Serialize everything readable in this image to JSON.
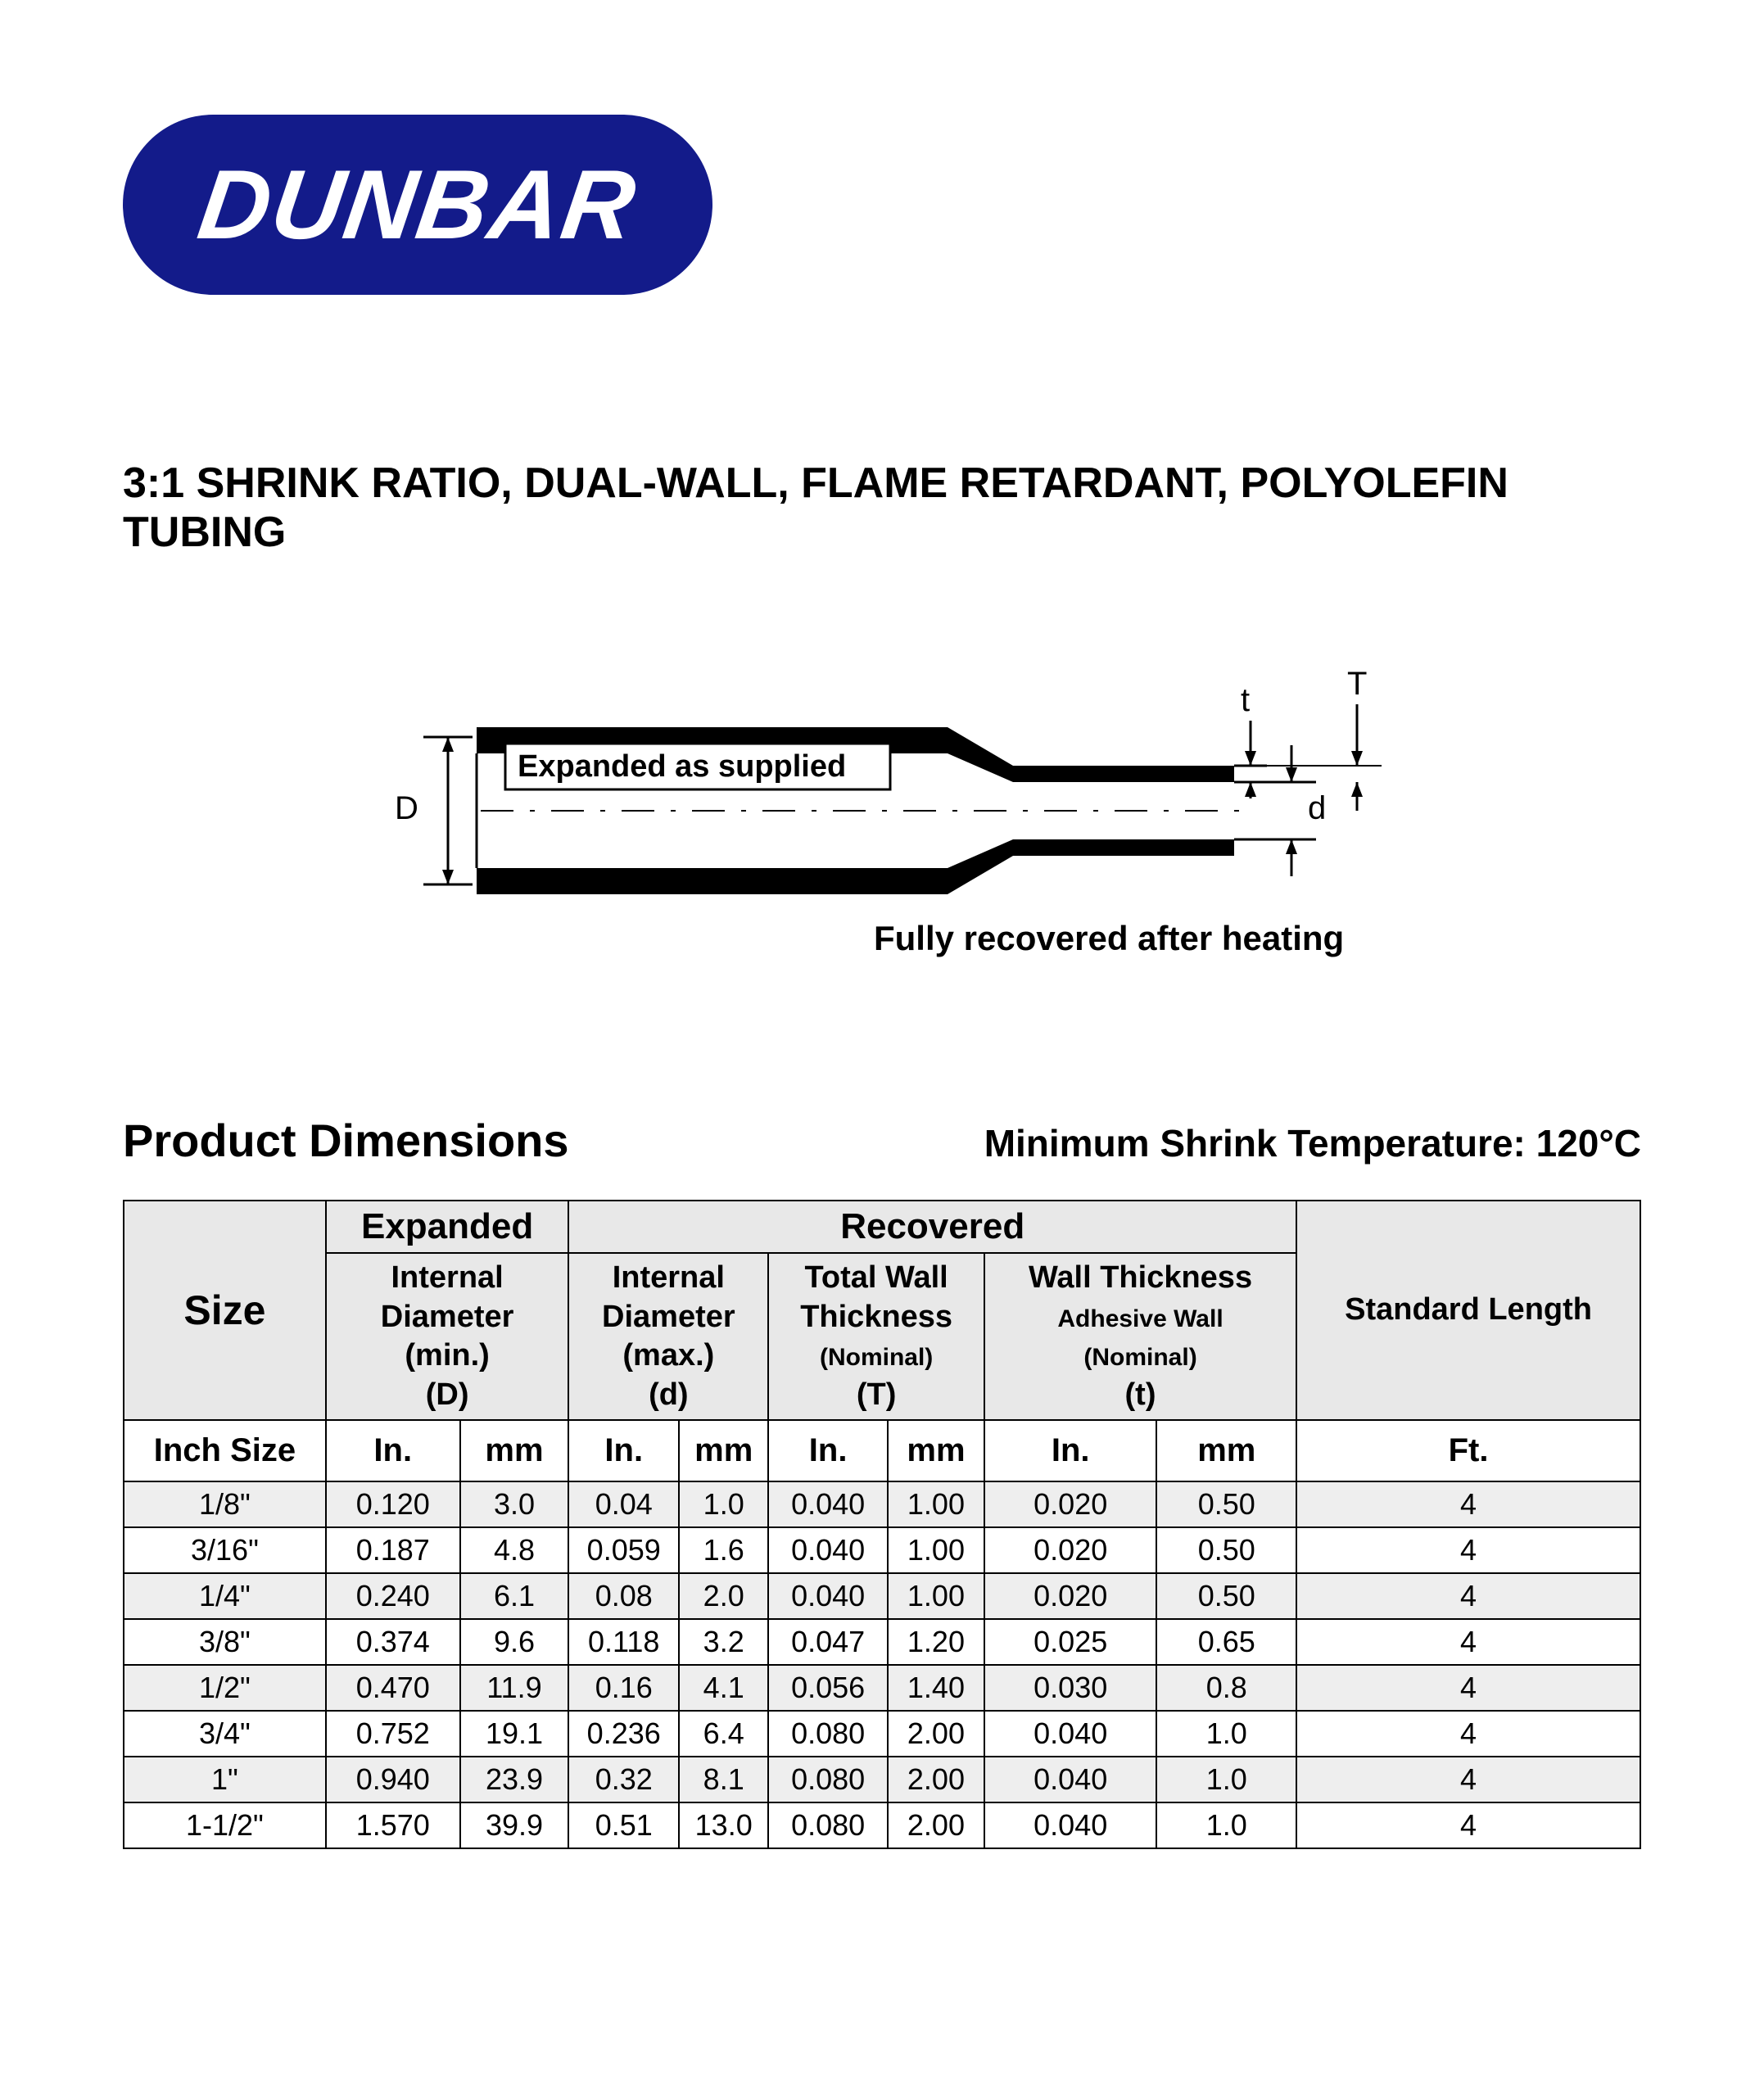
{
  "logo": {
    "text": "DUNBAR",
    "bg": "#131b8a",
    "fg": "#ffffff"
  },
  "title": "3:1 SHRINK RATIO, DUAL-WALL, FLAME RETARDANT, POLYOLEFIN TUBING",
  "diagram": {
    "label_expanded": "Expanded as supplied",
    "label_recovered": "Fully recovered after heating",
    "D": "D",
    "d": "d",
    "T": "T",
    "t": "t"
  },
  "section_heading": "Product Dimensions",
  "shrink_temp": "Minimum Shrink Temperature: 120°C",
  "table": {
    "colors": {
      "header_bg": "#e8e8e8",
      "stripe_bg": "#eeeeee",
      "border": "#000000"
    },
    "group_headers": {
      "expanded": "Expanded",
      "recovered": "Recovered"
    },
    "size_header": "Size",
    "inch_size_header": "Inch Size",
    "std_length_header": "Standard Length",
    "col_headers": {
      "exp_id": {
        "l1": "Internal",
        "l2": "Diameter",
        "l3": "(min.)",
        "l4": "(D)"
      },
      "rec_id": {
        "l1": "Internal",
        "l2": "Diameter",
        "l3": "(max.)",
        "l4": "(d)"
      },
      "rec_tw": {
        "l1": "Total Wall",
        "l2": "Thickness",
        "l3": "(Nominal)",
        "l4": "(T)"
      },
      "rec_aw": {
        "l1": "Wall Thickness",
        "l2": "Adhesive Wall",
        "l3": "(Nominal)",
        "l4": "(t)"
      }
    },
    "units": {
      "in": "In.",
      "mm": "mm",
      "ft": "Ft."
    },
    "rows": [
      {
        "size": "1/8\"",
        "d_in": "0.120",
        "d_mm": "3.0",
        "r_in": "0.04",
        "r_mm": "1.0",
        "tw_in": "0.040",
        "tw_mm": "1.00",
        "aw_in": "0.020",
        "aw_mm": "0.50",
        "len": "4"
      },
      {
        "size": "3/16\"",
        "d_in": "0.187",
        "d_mm": "4.8",
        "r_in": "0.059",
        "r_mm": "1.6",
        "tw_in": "0.040",
        "tw_mm": "1.00",
        "aw_in": "0.020",
        "aw_mm": "0.50",
        "len": "4"
      },
      {
        "size": "1/4\"",
        "d_in": "0.240",
        "d_mm": "6.1",
        "r_in": "0.08",
        "r_mm": "2.0",
        "tw_in": "0.040",
        "tw_mm": "1.00",
        "aw_in": "0.020",
        "aw_mm": "0.50",
        "len": "4"
      },
      {
        "size": "3/8\"",
        "d_in": "0.374",
        "d_mm": "9.6",
        "r_in": "0.118",
        "r_mm": "3.2",
        "tw_in": "0.047",
        "tw_mm": "1.20",
        "aw_in": "0.025",
        "aw_mm": "0.65",
        "len": "4"
      },
      {
        "size": "1/2\"",
        "d_in": "0.470",
        "d_mm": "11.9",
        "r_in": "0.16",
        "r_mm": "4.1",
        "tw_in": "0.056",
        "tw_mm": "1.40",
        "aw_in": "0.030",
        "aw_mm": "0.8",
        "len": "4"
      },
      {
        "size": "3/4\"",
        "d_in": "0.752",
        "d_mm": "19.1",
        "r_in": "0.236",
        "r_mm": "6.4",
        "tw_in": "0.080",
        "tw_mm": "2.00",
        "aw_in": "0.040",
        "aw_mm": "1.0",
        "len": "4"
      },
      {
        "size": "1\"",
        "d_in": "0.940",
        "d_mm": "23.9",
        "r_in": "0.32",
        "r_mm": "8.1",
        "tw_in": "0.080",
        "tw_mm": "2.00",
        "aw_in": "0.040",
        "aw_mm": "1.0",
        "len": "4"
      },
      {
        "size": "1-1/2\"",
        "d_in": "1.570",
        "d_mm": "39.9",
        "r_in": "0.51",
        "r_mm": "13.0",
        "tw_in": "0.080",
        "tw_mm": "2.00",
        "aw_in": "0.040",
        "aw_mm": "1.0",
        "len": "4"
      }
    ]
  }
}
